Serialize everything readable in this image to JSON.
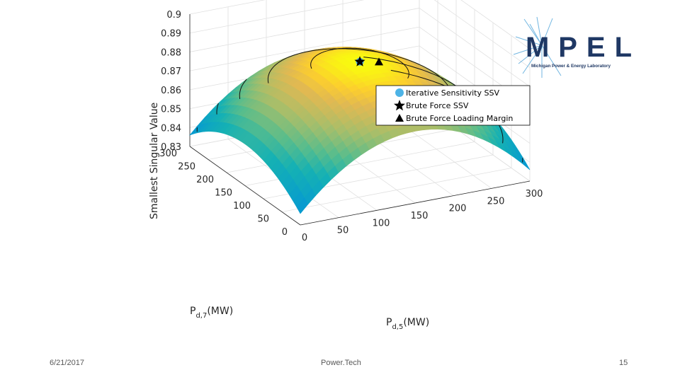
{
  "slide": {
    "date": "6/21/2017",
    "footer": "Power.Tech",
    "page": "15"
  },
  "logo": {
    "name": "MPEL",
    "subtitle": "Michigan Power & Energy Laboratory",
    "color": "#1f3864",
    "accent": "#4da3d9"
  },
  "chart_data": {
    "type": "surface",
    "zlabel": "Smallest Singular Value",
    "xlabel": "P_d,5(MW)",
    "ylabel": "P_d,7(MW)",
    "xlim": [
      0,
      300
    ],
    "ylim": [
      0,
      300
    ],
    "zlim": [
      0.83,
      0.9
    ],
    "x_ticks": [
      "0",
      "50",
      "100",
      "150",
      "200",
      "250",
      "300"
    ],
    "y_ticks": [
      "0",
      "50",
      "100",
      "150",
      "200",
      "250",
      "300"
    ],
    "z_ticks": [
      "0.83",
      "0.84",
      "0.85",
      "0.86",
      "0.87",
      "0.88",
      "0.89",
      "0.9"
    ],
    "contour_levels": [
      0.84,
      0.85,
      0.86,
      0.87,
      0.88
    ],
    "surface_model": {
      "peak": 0.884,
      "peak_x": 150,
      "peak_y": 150,
      "edge_z_at_origin": 0.803,
      "edge_z_at_x300": 0.852,
      "edge_z_at_y300": 0.868
    },
    "legend": [
      {
        "label": "Iterative Sensitivity SSV",
        "marker": "circle",
        "color": "#4db3e6"
      },
      {
        "label": "Brute Force SSV",
        "marker": "star",
        "color": "#000000"
      },
      {
        "label": "Brute Force Loading Margin",
        "marker": "triangle",
        "color": "#000000"
      }
    ],
    "points": [
      {
        "series": "Iterative Sensitivity SSV",
        "x": 150,
        "y": 150,
        "z": 0.884
      },
      {
        "series": "Brute Force SSV",
        "x": 150,
        "y": 150,
        "z": 0.884
      },
      {
        "series": "Brute Force Loading Margin",
        "x": 175,
        "y": 150,
        "z": 0.882
      }
    ]
  }
}
